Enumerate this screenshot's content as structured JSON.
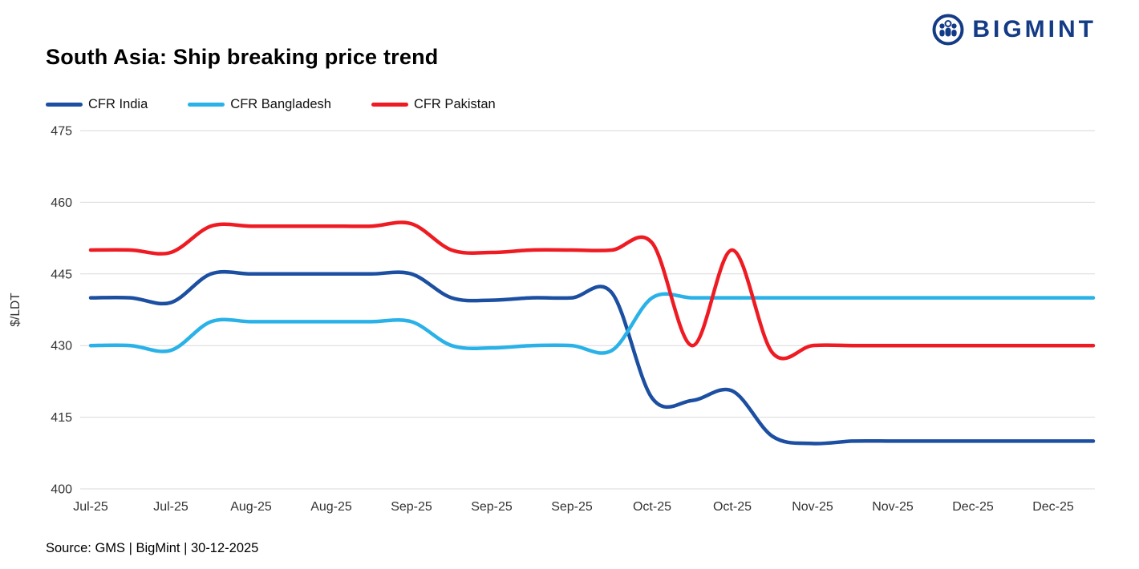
{
  "logo": {
    "text": "BIGMINT",
    "color": "#143b86"
  },
  "source": {
    "text": "Source: GMS | BigMint  | 30-12-2025"
  },
  "chart_data": {
    "type": "line",
    "title": "South Asia: Ship breaking  price trend",
    "ylabel": "$/LDT",
    "ylim": [
      400,
      475
    ],
    "yticks": [
      400,
      415,
      430,
      445,
      460,
      475
    ],
    "grid": true,
    "legend_position": "top-left",
    "gridline_color": "#d9d9d9",
    "x_ticks_every": 2,
    "x_tick_labels": [
      "Jul-25",
      "Jul-25",
      "Aug-25",
      "Aug-25",
      "Sep-25",
      "Sep-25",
      "Sep-25",
      "Oct-25",
      "Oct-25",
      "Nov-25",
      "Nov-25",
      "Dec-25",
      "Dec-25"
    ],
    "series": [
      {
        "name": "CFR India",
        "color": "#1c4fa1",
        "values": [
          440,
          440,
          439,
          445,
          445,
          445,
          445,
          445,
          445,
          440,
          439.5,
          440,
          440,
          441,
          419,
          418.5,
          420.5,
          411,
          409.5,
          410,
          410,
          410,
          410,
          410,
          410,
          410
        ]
      },
      {
        "name": "CFR Bangladesh",
        "color": "#2ab2e8",
        "values": [
          430,
          430,
          429,
          435,
          435,
          435,
          435,
          435,
          435,
          430,
          429.5,
          430,
          430,
          429,
          440,
          440,
          440,
          440,
          440,
          440,
          440,
          440,
          440,
          440,
          440,
          440
        ]
      },
      {
        "name": "CFR Pakistan",
        "color": "#ee1b23",
        "values": [
          450,
          450,
          449.5,
          455,
          455,
          455,
          455,
          455,
          455.5,
          450,
          449.5,
          450,
          450,
          450,
          451.5,
          430,
          450,
          428.5,
          430,
          430,
          430,
          430,
          430,
          430,
          430,
          430
        ]
      }
    ]
  }
}
